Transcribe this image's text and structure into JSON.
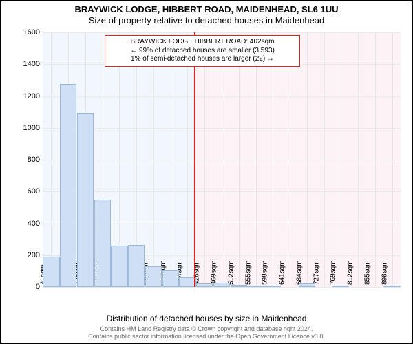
{
  "chart": {
    "type": "histogram",
    "title_line1": "BRAYWICK LODGE, HIBBERT ROAD, MAIDENHEAD, SL6 1UU",
    "title_line2": "Size of property relative to detached houses in Maidenhead",
    "y_axis_title": "Number of detached properties",
    "x_axis_title": "Distribution of detached houses by size in Maidenhead",
    "ylim_max": 1600,
    "ytick_step": 200,
    "y_ticks": [
      0,
      200,
      400,
      600,
      800,
      1000,
      1200,
      1400,
      1600
    ],
    "x_ticks": [
      "41sqm",
      "83sqm",
      "126sqm",
      "169sqm",
      "212sqm",
      "255sqm",
      "298sqm",
      "341sqm",
      "384sqm",
      "426sqm",
      "469sqm",
      "512sqm",
      "555sqm",
      "598sqm",
      "641sqm",
      "684sqm",
      "727sqm",
      "769sqm",
      "812sqm",
      "855sqm",
      "898sqm"
    ],
    "bars": [
      190,
      1275,
      1095,
      550,
      260,
      265,
      130,
      105,
      60,
      20,
      25,
      15,
      10,
      10,
      0,
      20,
      0,
      5,
      0,
      0,
      5
    ],
    "bar_color": "#cfe0f5",
    "bar_border_color": "#9bb8dd",
    "grid_color": "#e8e8e8",
    "background_color": "#ffffff",
    "zone_left_color": "#f2f7fd",
    "zone_right_color": "#fdf2f5",
    "reference_value_sqm": 402,
    "reference_color": "#d22",
    "annotation": {
      "line1": "BRAYWICK LODGE HIBBERT ROAD: 402sqm",
      "line2": "← 99% of detached houses are smaller (3,593)",
      "line3": "1% of semi-detached houses are larger (22) →",
      "fontsize": 10
    },
    "footer_line1": "Contains HM Land Registry data © Crown copyright and database right 2024.",
    "footer_line2": "Contains public sector information licensed under the Open Government Licence v3.0.",
    "title_fontsize": 13,
    "axis_title_fontsize": 12,
    "tick_fontsize": 11,
    "footer_fontsize": 9
  }
}
